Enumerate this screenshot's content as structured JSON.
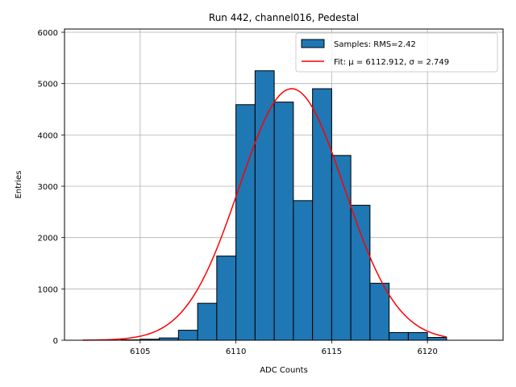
{
  "chart_data": {
    "type": "bar",
    "title": "Run 442, channel016, Pedestal",
    "xlabel": "ADC Counts",
    "ylabel": "Entries",
    "xlim": [
      6101.05,
      6123.95
    ],
    "ylim": [
      0,
      6063
    ],
    "xticks": [
      6105,
      6110,
      6115,
      6120
    ],
    "yticks": [
      0,
      1000,
      2000,
      3000,
      4000,
      5000,
      6000
    ],
    "grid": true,
    "legend_position": "top-right",
    "histogram": {
      "name": "Samples: RMS=2.42",
      "color": "#1f77b4",
      "edge_color": "#000000",
      "bin_edges": [
        6104,
        6105,
        6106,
        6107,
        6108,
        6109,
        6110,
        6111,
        6112,
        6113,
        6114,
        6115,
        6116,
        6117,
        6118,
        6119,
        6120,
        6121
      ],
      "counts": [
        8,
        20,
        45,
        195,
        720,
        1640,
        4590,
        5250,
        4640,
        2720,
        4900,
        3600,
        2630,
        1110,
        150,
        150,
        55
      ]
    },
    "fit": {
      "name": "Fit: μ = 6112.912, σ = 2.749",
      "color": "#ff0000",
      "mu": 6112.912,
      "sigma": 2.749,
      "amplitude": 4900,
      "x_range": [
        6102,
        6121
      ]
    }
  }
}
